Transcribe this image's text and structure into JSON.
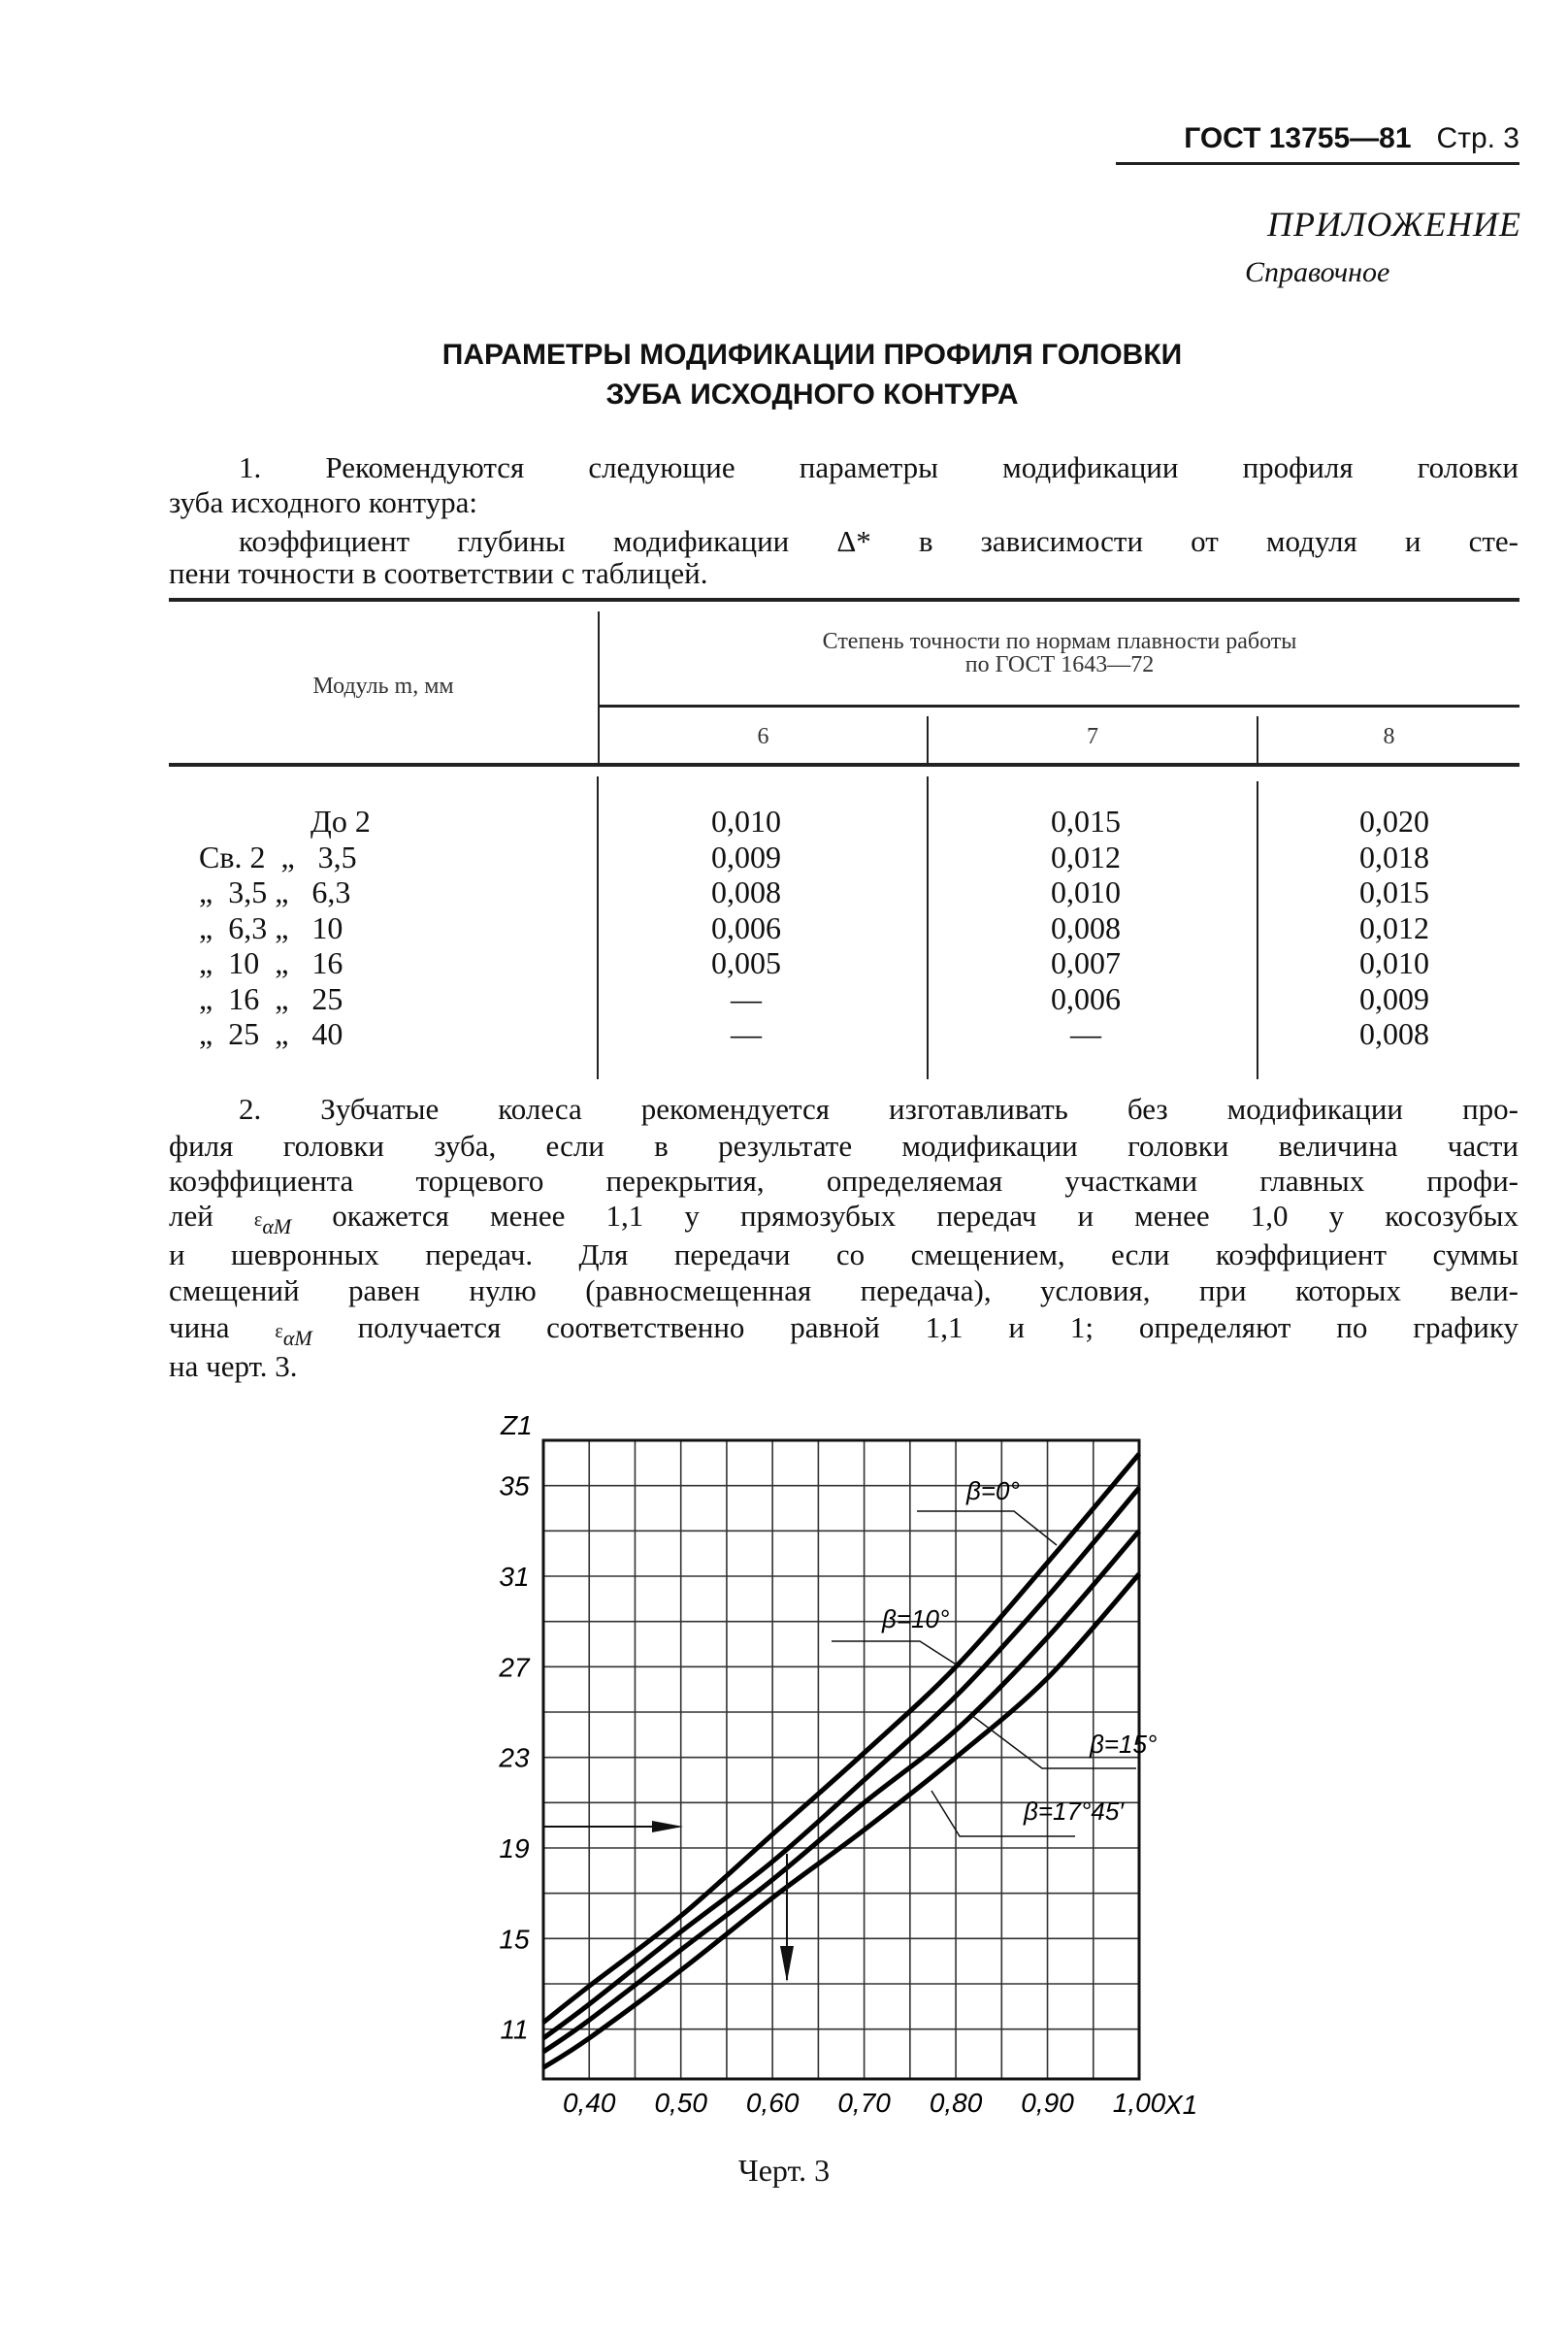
{
  "header": {
    "doc": "ГОСТ 13755—81",
    "page": "Стр. 3"
  },
  "appendix": {
    "label": "ПРИЛОЖЕНИЕ",
    "kind": "Справочное"
  },
  "title": [
    "ПАРАМЕТРЫ МОДИФИКАЦИИ ПРОФИЛЯ ГОЛОВКИ",
    "ЗУБА ИСХОДНОГО КОНТУРА"
  ],
  "para1": [
    "1. Рекомендуются следующие параметры модификации профиля головки",
    "зуба исходного контура:",
    "коэффициент глубины модификации Δ* в зависимости от модуля и сте-",
    "пени точности в соответствии с таблицей."
  ],
  "table": {
    "col_module": "Модуль m, мм",
    "col_group": [
      "Степень точности по нормам плавности работы",
      "по ГОСТ 1643—72"
    ],
    "grades": [
      "6",
      "7",
      "8"
    ],
    "rows": [
      {
        "module": "До 2",
        "values": [
          "0,010",
          "0,015",
          "0,020"
        ]
      },
      {
        "module": "Св. 2  „   3,5",
        "values": [
          "0,009",
          "0,012",
          "0,018"
        ]
      },
      {
        "module": "„  3,5 „   6,3",
        "values": [
          "0,008",
          "0,010",
          "0,015"
        ]
      },
      {
        "module": "„  6,3 „   10",
        "values": [
          "0,006",
          "0,008",
          "0,012"
        ]
      },
      {
        "module": "„  10  „   16",
        "values": [
          "0,005",
          "0,007",
          "0,010"
        ]
      },
      {
        "module": "„  16  „   25",
        "values": [
          "—",
          "0,006",
          "0,009"
        ]
      },
      {
        "module": "„  25  „   40",
        "values": [
          "—",
          "—",
          "0,008"
        ]
      }
    ]
  },
  "para2": [
    "2. Зубчатые колеса рекомендуется изготавливать без модификации про-",
    "филя головки зуба, если в результате модификации головки величина части",
    "коэффициента торцевого перекрытия, определяемая участками главных профи-",
    [
      "лей ",
      "ε",
      "αM",
      " окажется менее 1,1 у прямозубых передач и менее 1,0 у косозубых"
    ],
    "и шевронных передач. Для передачи со смещением, если коэффициент суммы",
    "смещений равен нулю (равносмещенная передача), условия, при которых вели-",
    [
      "чина ",
      "ε",
      "αM",
      " получается соответственно равной 1,1 и 1; определяют по графику"
    ],
    "на черт. 3."
  ],
  "chart_data": {
    "type": "line",
    "ylabel": "Z1",
    "xlabel": "X1",
    "xlim": [
      0.35,
      1.0
    ],
    "ylim": [
      8.8,
      37
    ],
    "grid": true,
    "x_ticks": [
      0.4,
      0.5,
      0.6,
      0.7,
      0.8,
      0.9,
      1.0
    ],
    "x_tick_labels": [
      "0,40",
      "0,50",
      "0,60",
      "0,70",
      "0,80",
      "0,90",
      "1,00"
    ],
    "y_ticks": [
      11,
      15,
      19,
      23,
      27,
      31,
      35
    ],
    "y_tick_labels": [
      "11",
      "15",
      "19",
      "23",
      "27",
      "31",
      "35"
    ],
    "x": [
      0.35,
      0.4,
      0.5,
      0.6,
      0.7,
      0.8,
      0.9,
      1.0
    ],
    "series": [
      {
        "name": "β=0°",
        "values": [
          11.3,
          12.9,
          16.0,
          19.6,
          23.2,
          27.0,
          31.6,
          36.4
        ]
      },
      {
        "name": "β=10°",
        "values": [
          10.6,
          12.1,
          15.3,
          18.4,
          22.0,
          25.7,
          30.1,
          34.9
        ]
      },
      {
        "name": "β=15°",
        "values": [
          10.0,
          11.4,
          14.5,
          17.6,
          21.0,
          24.2,
          28.3,
          33.0
        ]
      },
      {
        "name": "β=17°45′",
        "values": [
          9.3,
          10.6,
          13.6,
          16.8,
          19.8,
          23.0,
          26.5,
          31.1
        ]
      }
    ],
    "caption": "Черт. 3"
  }
}
